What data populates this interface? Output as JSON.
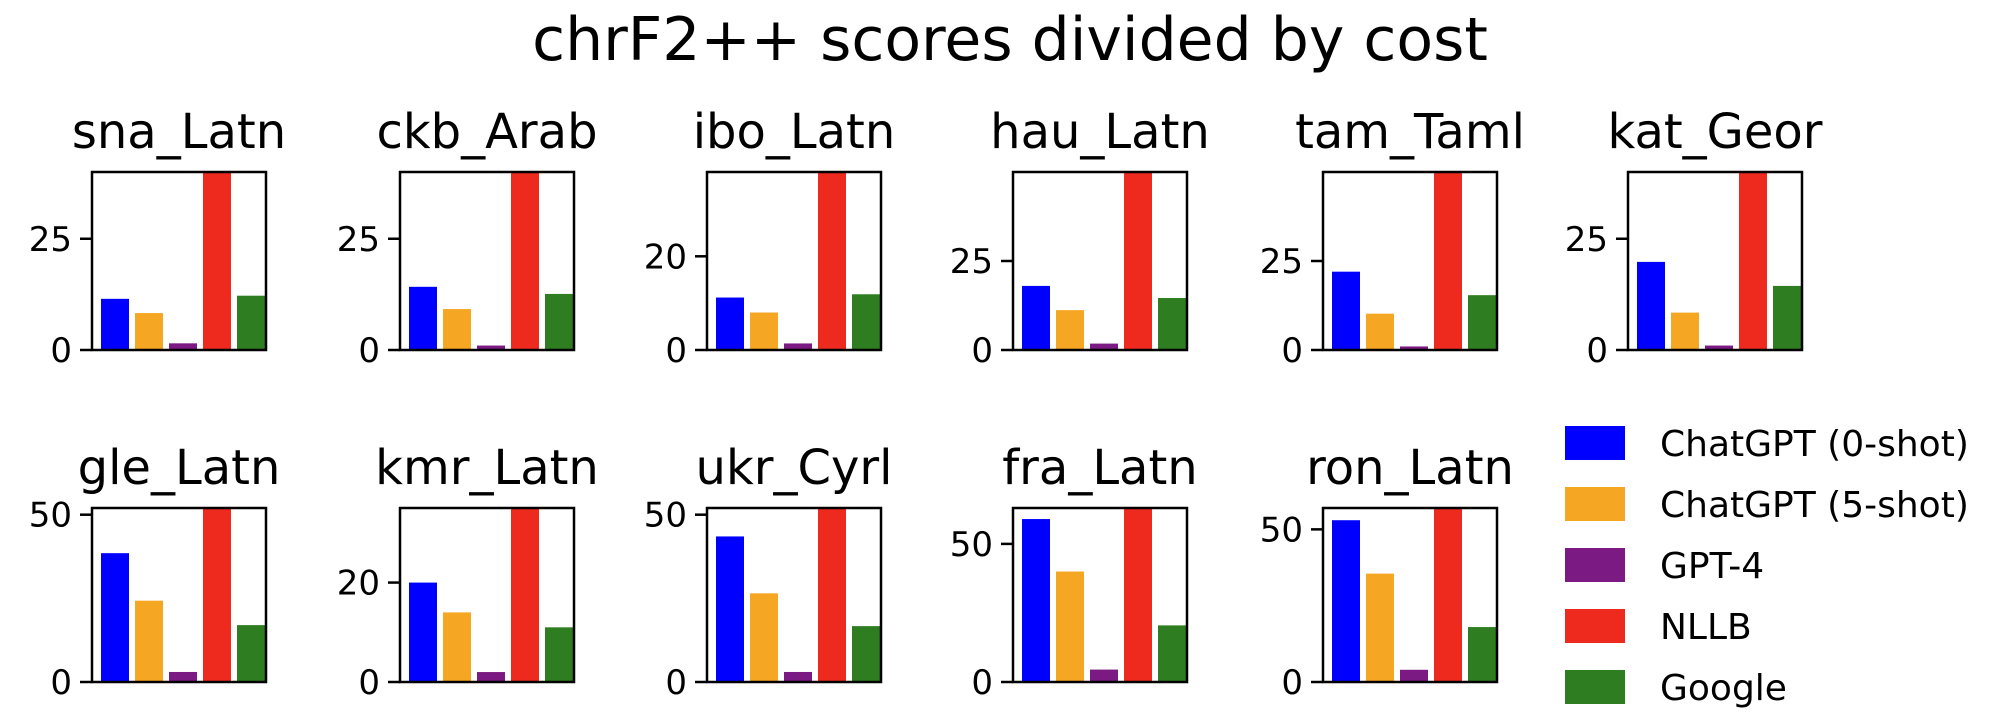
{
  "chart_data": {
    "type": "bar",
    "title": "chrF2++ scores divided by cost",
    "series_names": [
      "ChatGPT (0-shot)",
      "ChatGPT (5-shot)",
      "GPT-4",
      "NLLB",
      "Google"
    ],
    "colors": [
      "#0000ff",
      "#f5a623",
      "#7b1a82",
      "#ee2a1f",
      "#2e7d20"
    ],
    "legend_position": "lower-right",
    "grid": false,
    "subplots": [
      {
        "title": "sna_Latn",
        "ylim": [
          0,
          40
        ],
        "yticks": [
          0,
          25
        ],
        "values": [
          11.5,
          8.3,
          1.5,
          40,
          12.2
        ],
        "clipped": [
          false,
          false,
          false,
          true,
          false
        ]
      },
      {
        "title": "ckb_Arab",
        "ylim": [
          0,
          40
        ],
        "yticks": [
          0,
          25
        ],
        "values": [
          14.2,
          9.2,
          1.0,
          40,
          12.6
        ],
        "clipped": [
          false,
          false,
          false,
          true,
          false
        ]
      },
      {
        "title": "ibo_Latn",
        "ylim": [
          0,
          38
        ],
        "yticks": [
          0,
          20
        ],
        "values": [
          11.2,
          8.0,
          1.4,
          38,
          11.9
        ],
        "clipped": [
          false,
          false,
          false,
          true,
          false
        ]
      },
      {
        "title": "hau_Latn",
        "ylim": [
          0,
          50
        ],
        "yticks": [
          0,
          25
        ],
        "values": [
          18.0,
          11.2,
          1.8,
          50,
          14.6
        ],
        "clipped": [
          false,
          false,
          false,
          true,
          false
        ]
      },
      {
        "title": "tam_Taml",
        "ylim": [
          0,
          50
        ],
        "yticks": [
          0,
          25
        ],
        "values": [
          22.0,
          10.2,
          1.0,
          50,
          15.4
        ],
        "clipped": [
          false,
          false,
          false,
          true,
          false
        ]
      },
      {
        "title": "kat_Geor",
        "ylim": [
          0,
          40
        ],
        "yticks": [
          0,
          25
        ],
        "values": [
          19.8,
          8.4,
          1.0,
          40,
          14.4
        ],
        "clipped": [
          false,
          false,
          false,
          true,
          false
        ]
      },
      {
        "title": "gle_Latn",
        "ylim": [
          0,
          52
        ],
        "yticks": [
          0,
          50
        ],
        "values": [
          38.5,
          24.3,
          3.0,
          52,
          17.0
        ],
        "clipped": [
          false,
          false,
          false,
          true,
          false
        ]
      },
      {
        "title": "kmr_Latn",
        "ylim": [
          0,
          35
        ],
        "yticks": [
          0,
          20
        ],
        "values": [
          20.0,
          14.0,
          2.0,
          35,
          11.0
        ],
        "clipped": [
          false,
          false,
          false,
          true,
          false
        ]
      },
      {
        "title": "ukr_Cyrl",
        "ylim": [
          0,
          52
        ],
        "yticks": [
          0,
          50
        ],
        "values": [
          43.5,
          26.5,
          3.0,
          52,
          16.7
        ],
        "clipped": [
          false,
          false,
          false,
          true,
          false
        ]
      },
      {
        "title": "fra_Latn",
        "ylim": [
          0,
          63
        ],
        "yticks": [
          0,
          50
        ],
        "values": [
          59.0,
          40.0,
          4.5,
          63,
          20.5
        ],
        "clipped": [
          false,
          false,
          false,
          true,
          false
        ]
      },
      {
        "title": "ron_Latn",
        "ylim": [
          0,
          57
        ],
        "yticks": [
          0,
          50
        ],
        "values": [
          53.0,
          35.5,
          4.0,
          57,
          18.0
        ],
        "clipped": [
          false,
          false,
          false,
          true,
          false
        ]
      }
    ]
  }
}
